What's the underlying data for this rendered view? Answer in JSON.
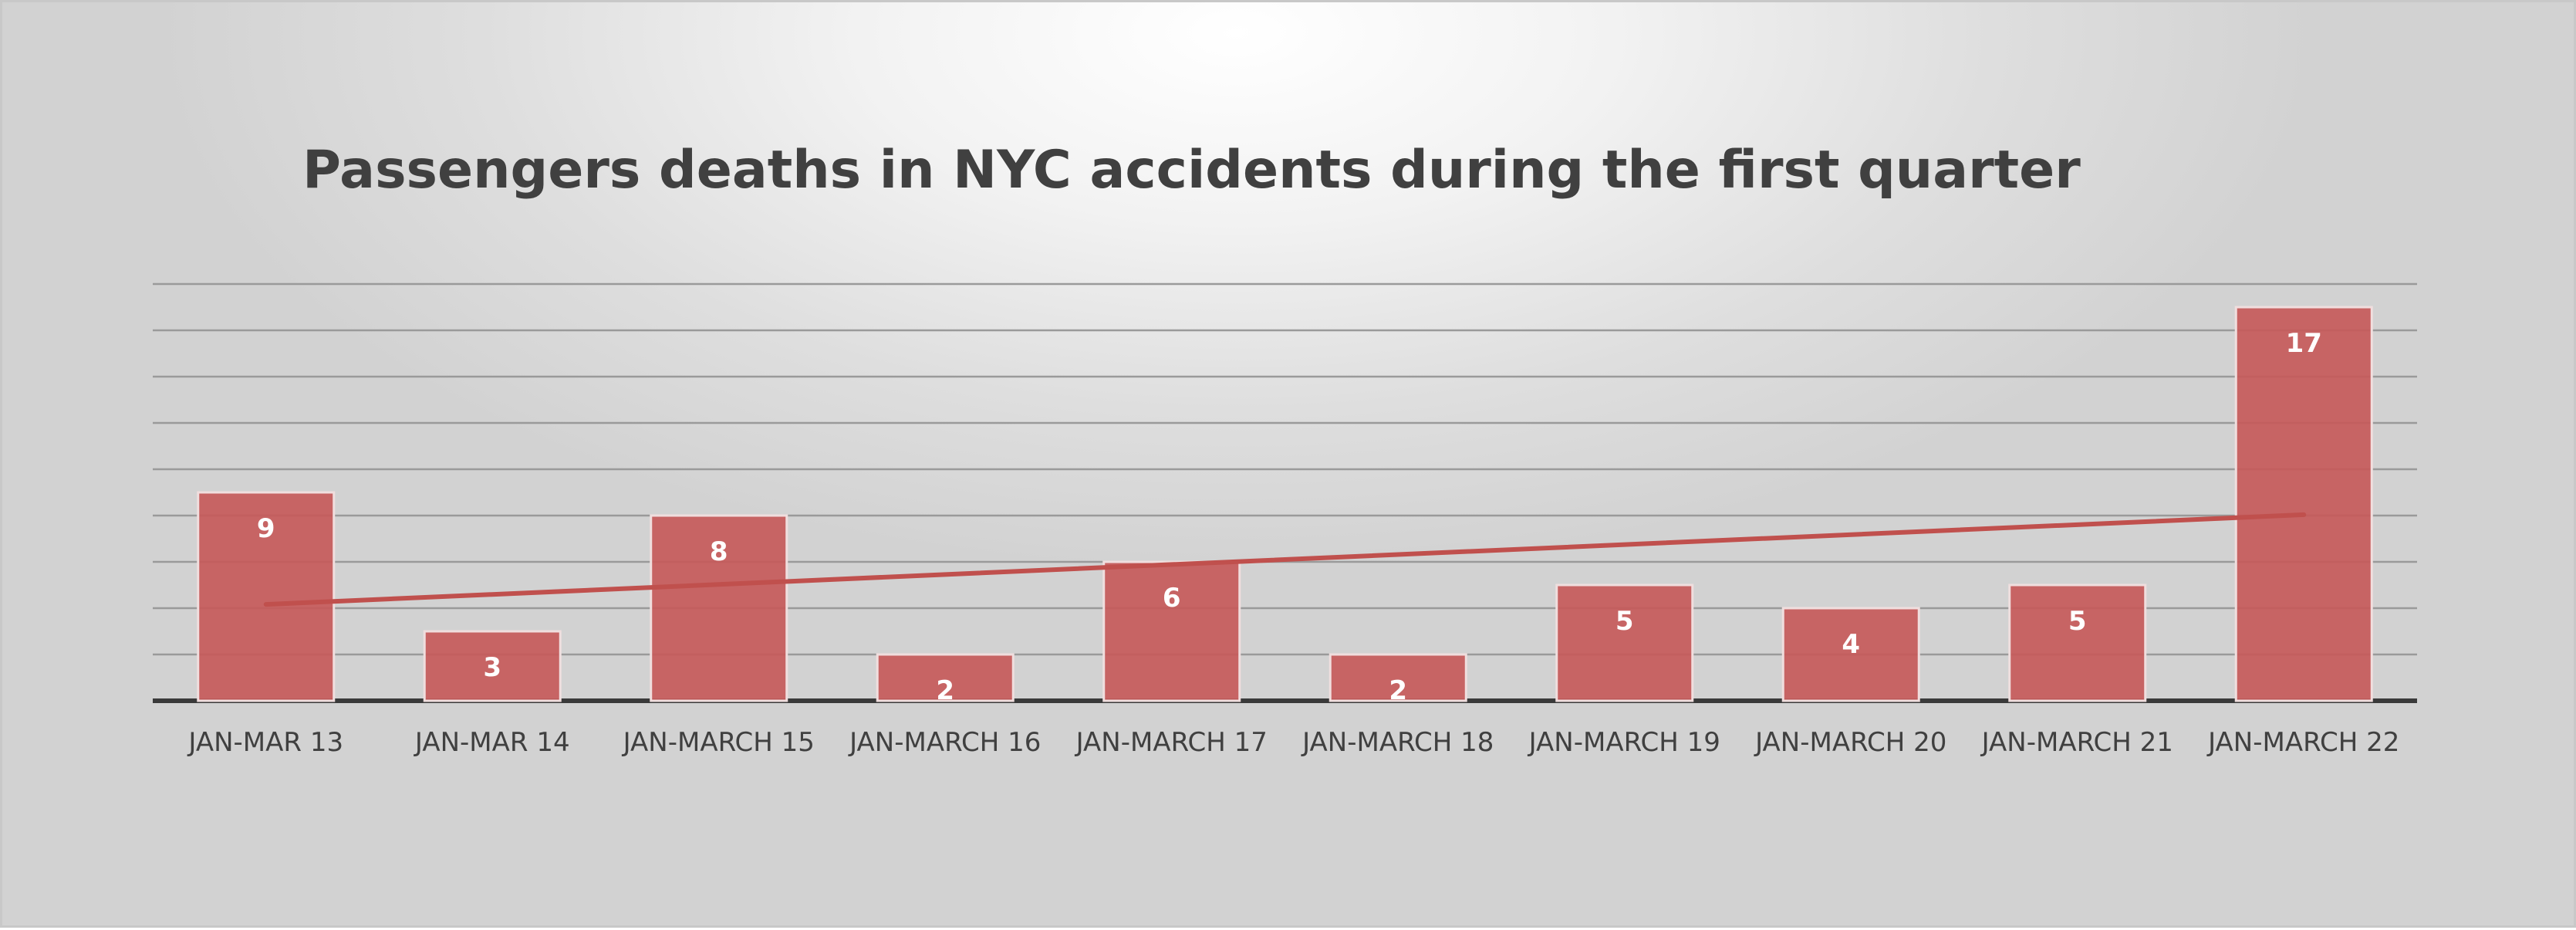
{
  "chart_data": {
    "type": "bar",
    "title": "Passengers deaths in NYC accidents during the first quarter",
    "categories": [
      "JAN-MAR 13",
      "JAN-MAR 14",
      "JAN-MARCH 15",
      "JAN-MARCH 16",
      "JAN-MARCH 17",
      "JAN-MARCH 18",
      "JAN-MARCH 19",
      "JAN-MARCH 20",
      "JAN-MARCH 21",
      "JAN-MARCH 22"
    ],
    "values": [
      9,
      3,
      8,
      2,
      6,
      2,
      5,
      4,
      5,
      17
    ],
    "ylim": [
      0,
      18
    ],
    "ygrid_step": 2,
    "grid": true,
    "trendline": "linear",
    "colors": {
      "bar": "#c55a5a",
      "trendline": "#c0504d"
    }
  }
}
